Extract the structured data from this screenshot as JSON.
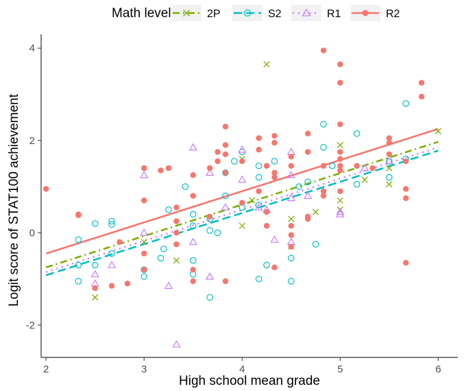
{
  "chart_data": {
    "type": "scatter",
    "title": "",
    "xlabel": "High school mean grade",
    "ylabel": "Logit score of STAT100 achievement",
    "xlim": [
      1.95,
      6.2
    ],
    "ylim": [
      -2.7,
      4.3
    ],
    "xticks": [
      "2",
      "3",
      "4",
      "5",
      "6"
    ],
    "yticks": [
      "-2",
      "0",
      "2",
      "4"
    ],
    "grid": false,
    "legend": {
      "title": "Math level",
      "position": "top"
    },
    "series": [
      {
        "name": "2P",
        "color": "#7CAE00",
        "marker": "cross",
        "line_style": "dash-dot",
        "fit": [
          [
            2.0,
            -0.75
          ],
          [
            6.0,
            1.97
          ]
        ],
        "points": [
          [
            2.5,
            -1.4
          ],
          [
            3.33,
            -0.6
          ],
          [
            4.0,
            0.15
          ],
          [
            4.0,
            1.6
          ],
          [
            4.1,
            0.7
          ],
          [
            4.25,
            3.65
          ],
          [
            4.5,
            0.3
          ],
          [
            4.75,
            0.45
          ],
          [
            5.0,
            1.9
          ],
          [
            5.0,
            0.7
          ],
          [
            5.0,
            0.5
          ],
          [
            5.25,
            1.15
          ],
          [
            5.5,
            1.4
          ],
          [
            5.5,
            1.05
          ],
          [
            6.0,
            2.2
          ],
          [
            3.0,
            -0.2
          ],
          [
            4.5,
            -0.3
          ]
        ]
      },
      {
        "name": "S2",
        "color": "#00BFC4",
        "marker": "circle-open",
        "line_style": "dashed",
        "fit": [
          [
            2.0,
            -0.92
          ],
          [
            6.0,
            1.78
          ]
        ],
        "points": [
          [
            2.33,
            -0.15
          ],
          [
            2.33,
            -0.7
          ],
          [
            2.33,
            -1.05
          ],
          [
            2.5,
            0.2
          ],
          [
            2.5,
            -0.7
          ],
          [
            2.67,
            0.25
          ],
          [
            2.67,
            0.18
          ],
          [
            2.67,
            -0.45
          ],
          [
            3.0,
            -0.8
          ],
          [
            3.0,
            -0.95
          ],
          [
            3.17,
            -0.55
          ],
          [
            3.2,
            -0.35
          ],
          [
            3.25,
            0.5
          ],
          [
            3.42,
            1.0
          ],
          [
            3.5,
            0.4
          ],
          [
            3.5,
            0.15
          ],
          [
            3.5,
            -0.6
          ],
          [
            3.5,
            -0.9
          ],
          [
            3.67,
            0.3
          ],
          [
            3.67,
            0.05
          ],
          [
            3.67,
            -1.4
          ],
          [
            3.75,
            0.0
          ],
          [
            3.83,
            0.8
          ],
          [
            3.83,
            1.3
          ],
          [
            3.92,
            1.55
          ],
          [
            4.0,
            0.55
          ],
          [
            4.0,
            1.75
          ],
          [
            4.17,
            1.2
          ],
          [
            4.17,
            1.45
          ],
          [
            4.17,
            0.6
          ],
          [
            4.17,
            -1.0
          ],
          [
            4.25,
            -0.7
          ],
          [
            4.33,
            1.55
          ],
          [
            4.5,
            -0.55
          ],
          [
            4.5,
            -1.05
          ],
          [
            4.58,
            1.0
          ],
          [
            4.67,
            1.1
          ],
          [
            4.75,
            -0.25
          ],
          [
            4.83,
            2.35
          ],
          [
            4.83,
            1.85
          ],
          [
            4.92,
            1.45
          ],
          [
            5.17,
            2.15
          ],
          [
            5.17,
            1.05
          ],
          [
            5.5,
            1.55
          ],
          [
            5.5,
            1.2
          ],
          [
            5.67,
            2.8
          ],
          [
            5.67,
            1.6
          ]
        ]
      },
      {
        "name": "R1",
        "color": "#C77CFF",
        "marker": "triangle-open",
        "line_style": "dotted",
        "fit": [
          [
            2.0,
            -0.85
          ],
          [
            6.0,
            1.85
          ]
        ],
        "points": [
          [
            2.5,
            -0.9
          ],
          [
            2.5,
            -1.1
          ],
          [
            2.67,
            -0.7
          ],
          [
            3.0,
            1.25
          ],
          [
            3.0,
            0.0
          ],
          [
            3.25,
            -1.15
          ],
          [
            3.33,
            -2.42
          ],
          [
            3.5,
            1.85
          ],
          [
            3.5,
            -0.2
          ],
          [
            3.67,
            1.3
          ],
          [
            3.67,
            -0.95
          ],
          [
            3.83,
            0.55
          ],
          [
            4.0,
            1.8
          ],
          [
            4.0,
            1.15
          ],
          [
            4.17,
            0.55
          ],
          [
            4.25,
            0.5
          ],
          [
            4.33,
            -0.15
          ],
          [
            4.5,
            1.75
          ],
          [
            4.5,
            1.25
          ],
          [
            4.5,
            0.75
          ],
          [
            4.5,
            -0.2
          ],
          [
            4.67,
            0.8
          ],
          [
            5.0,
            0.45
          ],
          [
            5.0,
            0.4
          ],
          [
            5.25,
            1.4
          ],
          [
            5.5,
            1.55
          ]
        ]
      },
      {
        "name": "R2",
        "color": "#F8766D",
        "marker": "circle-filled",
        "line_style": "solid",
        "fit": [
          [
            2.0,
            -0.45
          ],
          [
            6.0,
            2.25
          ]
        ],
        "points": [
          [
            2.0,
            0.95
          ],
          [
            2.33,
            0.4
          ],
          [
            2.33,
            0.38
          ],
          [
            2.5,
            -1.2
          ],
          [
            2.75,
            -0.2
          ],
          [
            2.67,
            -1.15
          ],
          [
            2.83,
            -1.1
          ],
          [
            3.0,
            1.4
          ],
          [
            3.0,
            0.7
          ],
          [
            3.0,
            -0.45
          ],
          [
            3.0,
            -0.8
          ],
          [
            3.17,
            1.35
          ],
          [
            3.25,
            1.4
          ],
          [
            3.33,
            0.55
          ],
          [
            3.33,
            0.25
          ],
          [
            3.33,
            0.0
          ],
          [
            3.33,
            -0.25
          ],
          [
            3.5,
            1.25
          ],
          [
            3.5,
            0.8
          ],
          [
            3.5,
            -0.8
          ],
          [
            3.5,
            -1.05
          ],
          [
            3.67,
            1.4
          ],
          [
            3.67,
            0.35
          ],
          [
            3.75,
            1.55
          ],
          [
            3.83,
            2.3
          ],
          [
            3.83,
            1.9
          ],
          [
            3.83,
            1.7
          ],
          [
            3.83,
            1.3
          ],
          [
            3.83,
            -1.05
          ],
          [
            3.75,
            1.75
          ],
          [
            4.0,
            1.55
          ],
          [
            4.0,
            0.65
          ],
          [
            4.17,
            2.05
          ],
          [
            4.17,
            1.8
          ],
          [
            4.17,
            0.9
          ],
          [
            4.25,
            1.45
          ],
          [
            4.25,
            0.45
          ],
          [
            4.25,
            0.15
          ],
          [
            4.33,
            2.1
          ],
          [
            4.33,
            1.95
          ],
          [
            4.33,
            1.3
          ],
          [
            4.33,
            1.2
          ],
          [
            4.33,
            -0.75
          ],
          [
            4.5,
            1.65
          ],
          [
            4.5,
            1.45
          ],
          [
            4.5,
            0.15
          ],
          [
            4.5,
            -0.05
          ],
          [
            4.5,
            -0.3
          ],
          [
            4.67,
            2.15
          ],
          [
            4.67,
            1.75
          ],
          [
            4.67,
            0.35
          ],
          [
            4.67,
            0.3
          ],
          [
            4.83,
            3.95
          ],
          [
            4.83,
            1.45
          ],
          [
            4.83,
            0.9
          ],
          [
            4.83,
            0.8
          ],
          [
            5.0,
            3.65
          ],
          [
            5.0,
            3.25
          ],
          [
            5.0,
            2.35
          ],
          [
            5.0,
            1.75
          ],
          [
            5.0,
            1.6
          ],
          [
            5.0,
            1.45
          ],
          [
            5.0,
            1.35
          ],
          [
            5.0,
            0.9
          ],
          [
            5.17,
            1.45
          ],
          [
            5.33,
            1.4
          ],
          [
            5.5,
            2.05
          ],
          [
            5.5,
            1.95
          ],
          [
            5.5,
            1.7
          ],
          [
            5.67,
            1.55
          ],
          [
            5.67,
            0.95
          ],
          [
            5.67,
            0.75
          ],
          [
            5.67,
            -0.65
          ],
          [
            5.83,
            3.25
          ],
          [
            5.83,
            2.95
          ]
        ]
      }
    ]
  }
}
